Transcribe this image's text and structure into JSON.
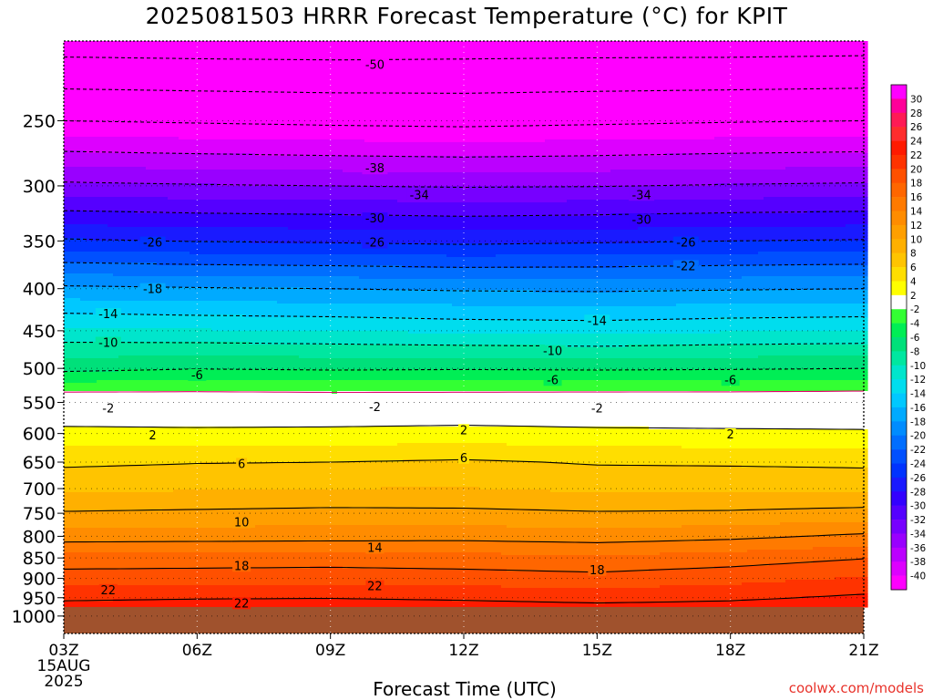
{
  "title": "2025081503 HRRR Forecast Temperature (°C) for KPIT",
  "xlabel": "Forecast Time (UTC)",
  "credit": "coolwx.com/models",
  "chart_data": {
    "type": "heatmap",
    "title": "2025081503 HRRR Forecast Temperature (°C) for KPIT",
    "xlabel": "Forecast Time (UTC)",
    "ylabel": "",
    "x_ticks": [
      "03Z",
      "06Z",
      "09Z",
      "12Z",
      "15Z",
      "18Z",
      "21Z"
    ],
    "x_tick_hours": [
      3,
      6,
      9,
      12,
      15,
      18,
      21
    ],
    "x_first_tick_sublabels": [
      "15AUG",
      "2025"
    ],
    "xlim": [
      3,
      21
    ],
    "y_ticks": [
      250,
      300,
      350,
      400,
      450,
      500,
      550,
      600,
      650,
      700,
      750,
      800,
      850,
      900,
      950,
      1000
    ],
    "ylim": [
      1050,
      200
    ],
    "y_scale": "log (pressure, hPa)",
    "ground_pressure": 975,
    "ground_color": "#a0522d",
    "contour_levels": [
      30,
      28,
      26,
      24,
      22,
      20,
      18,
      16,
      14,
      12,
      10,
      8,
      6,
      4,
      2,
      -2,
      -4,
      -6,
      -8,
      -10,
      -12,
      -14,
      -16,
      -18,
      -20,
      -22,
      -24,
      -26,
      -28,
      -30,
      -32,
      -34,
      -36,
      -38,
      -40
    ],
    "colorbar_colors": [
      "#ff00ff",
      "#ff0099",
      "#ff1a55",
      "#ff2d2d",
      "#ff1a00",
      "#ff3300",
      "#ff5000",
      "#ff6600",
      "#ff7a00",
      "#ff8c00",
      "#ff9f00",
      "#ffb000",
      "#ffc400",
      "#ffde00",
      "#ffff00",
      "#ffffff",
      "#33ff33",
      "#00ee55",
      "#00e07a",
      "#00e7a0",
      "#00e5cc",
      "#00ddee",
      "#00c8ff",
      "#00aaff",
      "#008cff",
      "#006eff",
      "#0050ff",
      "#0033ff",
      "#1a1aff",
      "#3300ff",
      "#5500ff",
      "#7700ff",
      "#9900ff",
      "#bb00ff",
      "#dd00ff",
      "#ff00ff"
    ],
    "profiles": [
      {
        "hour": 3,
        "temps": {
          "975": 23,
          "950": 21.5,
          "900": 19,
          "850": 16.8,
          "800": 13,
          "750": 10.2,
          "700": 7.6,
          "650": 5.6,
          "600": 2.6,
          "550": 0.0,
          "500": -6.6,
          "450": -11.5,
          "400": -17.5,
          "350": -25.7,
          "300": -33.5,
          "250": -42,
          "200": -52
        }
      },
      {
        "hour": 6,
        "temps": {
          "975": 23.2,
          "950": 21.8,
          "900": 19.1,
          "850": 16.9,
          "800": 13.1,
          "750": 10.4,
          "700": 7.8,
          "650": 5.9,
          "600": 2.5,
          "550": -0.1,
          "500": -6.1,
          "450": -11.8,
          "400": -17.8,
          "350": -26.1,
          "300": -33.8,
          "250": -42.3,
          "200": -52.2
        }
      },
      {
        "hour": 9,
        "temps": {
          "975": 23.3,
          "950": 21.9,
          "900": 19.2,
          "850": 17.0,
          "800": 13.2,
          "750": 10.6,
          "700": 8.0,
          "650": 6.0,
          "600": 2.6,
          "550": -0.2,
          "500": -6.3,
          "450": -12.0,
          "400": -18.0,
          "350": -26.3,
          "300": -34.0,
          "250": -42.6,
          "200": -52.3
        }
      },
      {
        "hour": 12,
        "temps": {
          "975": 23.0,
          "950": 21.6,
          "900": 19.0,
          "850": 16.8,
          "800": 13.3,
          "750": 10.5,
          "700": 8.1,
          "650": 6.3,
          "600": 2.8,
          "550": -0.2,
          "500": -6.2,
          "450": -12.4,
          "400": -18.3,
          "350": -26.6,
          "300": -34.2,
          "250": -42.8,
          "200": -52.1
        }
      },
      {
        "hour": 15,
        "temps": {
          "975": 22.6,
          "950": 21.2,
          "900": 18.7,
          "850": 16.4,
          "800": 13.0,
          "750": 10.2,
          "700": 7.6,
          "650": 5.8,
          "600": 2.5,
          "550": -0.1,
          "500": -6.3,
          "450": -12.6,
          "400": -18.4,
          "350": -26.3,
          "300": -34.1,
          "250": -42.5,
          "200": -52.0
        }
      },
      {
        "hour": 18,
        "temps": {
          "975": 22.8,
          "950": 21.6,
          "900": 19.3,
          "850": 17.0,
          "800": 13.5,
          "750": 10.3,
          "700": 7.7,
          "650": 5.7,
          "600": 2.4,
          "550": -0.1,
          "500": -6.2,
          "450": -12.2,
          "400": -18.2,
          "350": -26.0,
          "300": -33.8,
          "250": -42.2,
          "200": -52.0
        }
      },
      {
        "hour": 21,
        "temps": {
          "975": 23.4,
          "950": 22.4,
          "900": 20.2,
          "850": 17.9,
          "800": 14.4,
          "750": 10.8,
          "700": 7.4,
          "650": 5.6,
          "600": 2.3,
          "550": 0.0,
          "500": -6.0,
          "450": -12.0,
          "400": -18.0,
          "350": -25.8,
          "300": -33.6,
          "250": -42.0,
          "200": -51.8
        }
      }
    ],
    "contour_labels": [
      {
        "text": "-50",
        "hour": 10,
        "p": 214
      },
      {
        "text": "-38",
        "hour": 10,
        "p": 286
      },
      {
        "text": "-34",
        "hour": 11,
        "p": 308
      },
      {
        "text": "-34",
        "hour": 16,
        "p": 308
      },
      {
        "text": "-30",
        "hour": 10,
        "p": 329
      },
      {
        "text": "-30",
        "hour": 16,
        "p": 330
      },
      {
        "text": "-26",
        "hour": 5,
        "p": 352
      },
      {
        "text": "-26",
        "hour": 10,
        "p": 352
      },
      {
        "text": "-26",
        "hour": 17,
        "p": 352
      },
      {
        "text": "-22",
        "hour": 17,
        "p": 376
      },
      {
        "text": "-18",
        "hour": 5,
        "p": 401
      },
      {
        "text": "-14",
        "hour": 4,
        "p": 430
      },
      {
        "text": "-14",
        "hour": 15,
        "p": 438
      },
      {
        "text": "-10",
        "hour": 4,
        "p": 466
      },
      {
        "text": "-10",
        "hour": 14,
        "p": 477
      },
      {
        "text": "-6",
        "hour": 6,
        "p": 510
      },
      {
        "text": "-6",
        "hour": 14,
        "p": 517
      },
      {
        "text": "-6",
        "hour": 18,
        "p": 517
      },
      {
        "text": "-2",
        "hour": 4,
        "p": 560
      },
      {
        "text": "-2",
        "hour": 10,
        "p": 558
      },
      {
        "text": "-2",
        "hour": 15,
        "p": 560
      },
      {
        "text": "2",
        "hour": 5,
        "p": 604
      },
      {
        "text": "2",
        "hour": 12,
        "p": 595
      },
      {
        "text": "2",
        "hour": 18,
        "p": 602
      },
      {
        "text": "6",
        "hour": 7,
        "p": 654
      },
      {
        "text": "6",
        "hour": 12,
        "p": 643
      },
      {
        "text": "10",
        "hour": 7,
        "p": 770
      },
      {
        "text": "14",
        "hour": 10,
        "p": 827
      },
      {
        "text": "18",
        "hour": 7,
        "p": 870
      },
      {
        "text": "18",
        "hour": 15,
        "p": 880
      },
      {
        "text": "22",
        "hour": 4,
        "p": 931
      },
      {
        "text": "22",
        "hour": 10,
        "p": 921
      },
      {
        "text": "22",
        "hour": 7,
        "p": 966
      }
    ],
    "colorbar": {
      "labels": [
        "30",
        "28",
        "26",
        "24",
        "22",
        "20",
        "18",
        "16",
        "14",
        "12",
        "10",
        "8",
        "6",
        "4",
        "2",
        "-2",
        "-4",
        "-6",
        "-8",
        "-10",
        "-12",
        "-14",
        "-16",
        "-18",
        "-20",
        "-22",
        "-24",
        "-26",
        "-28",
        "-30",
        "-32",
        "-34",
        "-36",
        "-38",
        "-40"
      ]
    }
  }
}
